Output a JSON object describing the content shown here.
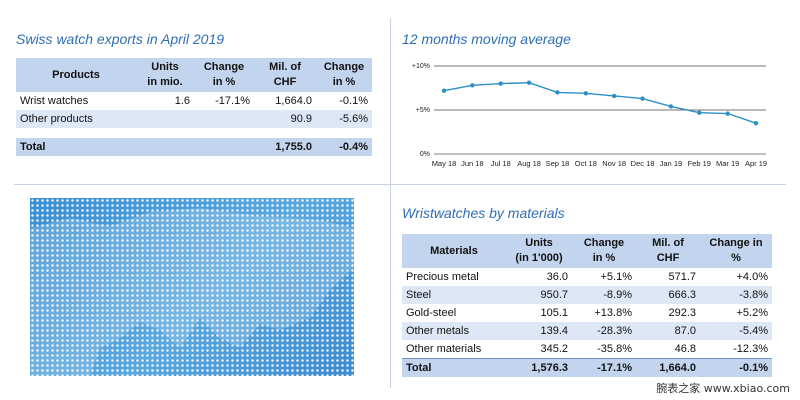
{
  "exports": {
    "title": "Swiss watch exports in April 2019",
    "headers": [
      "Products",
      "Units\nin mio.",
      "Change\nin %",
      "Mil. of\nCHF",
      "Change\nin %"
    ],
    "rows": [
      [
        "Wrist watches",
        "1.6",
        "-17.1%",
        "1,664.0",
        "-0.1%"
      ],
      [
        "Other products",
        "",
        "",
        "90.9",
        "-5.6%"
      ]
    ],
    "total": [
      "Total",
      "",
      "",
      "1,755.0",
      "-0.4%"
    ]
  },
  "moving_average": {
    "title": "12 months moving average"
  },
  "chart_data": {
    "type": "line",
    "title": "12 months moving average",
    "categories": [
      "May 18",
      "Jun 18",
      "Jul 18",
      "Aug 18",
      "Sep 18",
      "Oct 18",
      "Nov 18",
      "Dec 18",
      "Jan 19",
      "Feb 19",
      "Mar 19",
      "Apr 19"
    ],
    "series": [
      {
        "values": [
          7.2,
          7.8,
          8.0,
          8.1,
          7.0,
          6.9,
          6.6,
          6.3,
          5.4,
          4.7,
          4.6,
          3.5
        ]
      }
    ],
    "ylim": [
      0,
      10
    ],
    "yticks": [
      "0%",
      "+5%",
      "+10%"
    ],
    "grid": "horizontal",
    "color": "#2b8fc9"
  },
  "materials": {
    "title": "Wristwatches by materials",
    "headers": [
      "Materials",
      "Units\n(in 1'000)",
      "Change\nin %",
      "Mil. of\nCHF",
      "Change in\n%"
    ],
    "rows": [
      [
        "Precious metal",
        "36.0",
        "+5.1%",
        "571.7",
        "+4.0%"
      ],
      [
        "Steel",
        "950.7",
        "-8.9%",
        "666.3",
        "-3.8%"
      ],
      [
        "Gold-steel",
        "105.1",
        "+13.8%",
        "292.3",
        "+5.2%"
      ],
      [
        "Other metals",
        "139.4",
        "-28.3%",
        "87.0",
        "-5.4%"
      ],
      [
        "Other materials",
        "345.2",
        "-35.8%",
        "46.8",
        "-12.3%"
      ]
    ],
    "total": [
      "Total",
      "1,576.3",
      "-17.1%",
      "1,664.0",
      "-0.1%"
    ]
  },
  "watermark": "腕表之家 www.xbiao.com",
  "colors": {
    "accent": "#2e6fb5",
    "header_fill": "#c3d5ee",
    "row_alt": "#dde7f5",
    "map": "#3a8fd3"
  }
}
